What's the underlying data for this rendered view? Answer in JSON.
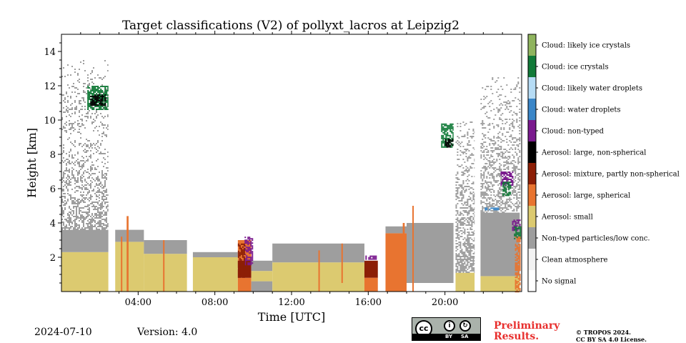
{
  "chart_data": {
    "type": "heatmap",
    "title": "Target classifications (V2) of pollyxt_lacros at Leipzig2",
    "xlabel": "Time [UTC]",
    "ylabel": "Height [km]",
    "xlim_hours": [
      0,
      24
    ],
    "ylim_km": [
      0,
      15
    ],
    "x_ticks": [
      {
        "value": 4,
        "label": "04:00"
      },
      {
        "value": 8,
        "label": "08:00"
      },
      {
        "value": 12,
        "label": "12:00"
      },
      {
        "value": 16,
        "label": "16:00"
      },
      {
        "value": 20,
        "label": "20:00"
      }
    ],
    "y_ticks": [
      {
        "value": 2,
        "label": "2"
      },
      {
        "value": 4,
        "label": "4"
      },
      {
        "value": 6,
        "label": "6"
      },
      {
        "value": 8,
        "label": "8"
      },
      {
        "value": 10,
        "label": "10"
      },
      {
        "value": 12,
        "label": "12"
      },
      {
        "value": 14,
        "label": "14"
      }
    ],
    "classes": [
      {
        "label": "No signal",
        "color": "#ffffff"
      },
      {
        "label": "Clean atmosphere",
        "color": "#f2f2f2"
      },
      {
        "label": "Non-typed particles/low conc.",
        "color": "#9e9e9e"
      },
      {
        "label": "Aerosol: small",
        "color": "#dcca70"
      },
      {
        "label": "Aerosol: large, spherical",
        "color": "#e87430"
      },
      {
        "label": "Aerosol: mixture, partly non-spherical",
        "color": "#8c1e06"
      },
      {
        "label": "Aerosol: large, non-spherical",
        "color": "#000000"
      },
      {
        "label": "Cloud: non-typed",
        "color": "#7a1a8e"
      },
      {
        "label": "Cloud: water droplets",
        "color": "#3a86c8"
      },
      {
        "label": "Cloud: likely water droplets",
        "color": "#b6dcf5"
      },
      {
        "label": "Cloud: ice crystals",
        "color": "#117a38"
      },
      {
        "label": "Cloud: likely ice crystals",
        "color": "#8fb45e"
      }
    ],
    "no_data_gaps_hours": [
      [
        2.45,
        2.8
      ],
      [
        6.55,
        6.85
      ],
      [
        20.45,
        20.55
      ],
      [
        21.55,
        21.85
      ]
    ],
    "profiles": [
      {
        "t": [
          0.0,
          2.45
        ],
        "layers": [
          {
            "class": 3,
            "bottom": 0.0,
            "top": 2.3
          },
          {
            "class": 2,
            "bottom": 2.3,
            "top": 3.6
          },
          {
            "class": 2,
            "bottom": 3.6,
            "top": 9.5,
            "sparse": 0.6
          },
          {
            "class": 2,
            "bottom": 9.5,
            "top": 13.5,
            "sparse": 0.25
          }
        ]
      },
      {
        "t": [
          2.8,
          4.3
        ],
        "layers": [
          {
            "class": 3,
            "bottom": 0.0,
            "top": 2.9
          },
          {
            "class": 2,
            "bottom": 2.9,
            "top": 3.6
          }
        ]
      },
      {
        "t": [
          4.3,
          6.55
        ],
        "layers": [
          {
            "class": 3,
            "bottom": 0.0,
            "top": 2.2
          },
          {
            "class": 2,
            "bottom": 2.2,
            "top": 3.0
          }
        ]
      },
      {
        "t": [
          6.85,
          9.2
        ],
        "layers": [
          {
            "class": 3,
            "bottom": 0.0,
            "top": 2.0
          },
          {
            "class": 2,
            "bottom": 2.0,
            "top": 2.3
          }
        ]
      },
      {
        "t": [
          9.2,
          9.9
        ],
        "layers": [
          {
            "class": 4,
            "bottom": 0.0,
            "top": 0.8
          },
          {
            "class": 5,
            "bottom": 0.8,
            "top": 1.8
          },
          {
            "class": 4,
            "bottom": 1.8,
            "top": 3.0
          }
        ]
      },
      {
        "t": [
          9.9,
          11.0
        ],
        "layers": [
          {
            "class": 2,
            "bottom": 0.0,
            "top": 0.6
          },
          {
            "class": 3,
            "bottom": 0.6,
            "top": 1.2
          },
          {
            "class": 2,
            "bottom": 1.2,
            "top": 1.8
          }
        ]
      },
      {
        "t": [
          11.0,
          15.8
        ],
        "layers": [
          {
            "class": 3,
            "bottom": 0.0,
            "top": 1.7
          },
          {
            "class": 2,
            "bottom": 1.7,
            "top": 2.8
          }
        ]
      },
      {
        "t": [
          15.8,
          16.5
        ],
        "layers": [
          {
            "class": 5,
            "bottom": 0.8,
            "top": 1.8
          },
          {
            "class": 4,
            "bottom": 0.0,
            "top": 0.8
          }
        ]
      },
      {
        "t": [
          16.9,
          18.0
        ],
        "layers": [
          {
            "class": 4,
            "bottom": 0.0,
            "top": 3.4
          },
          {
            "class": 2,
            "bottom": 3.4,
            "top": 3.8
          }
        ]
      },
      {
        "t": [
          18.0,
          20.45
        ],
        "layers": [
          {
            "class": 2,
            "bottom": 0.5,
            "top": 1.5
          },
          {
            "class": 2,
            "bottom": 1.5,
            "top": 4.0
          }
        ]
      },
      {
        "t": [
          20.55,
          21.55
        ],
        "layers": [
          {
            "class": 3,
            "bottom": 0.0,
            "top": 1.1
          },
          {
            "class": 2,
            "bottom": 1.1,
            "top": 10.0,
            "sparse": 0.7
          }
        ]
      },
      {
        "t": [
          21.85,
          23.9
        ],
        "layers": [
          {
            "class": 3,
            "bottom": 0.0,
            "top": 0.9
          },
          {
            "class": 2,
            "bottom": 0.9,
            "top": 4.6
          },
          {
            "class": 2,
            "bottom": 4.6,
            "top": 12.5,
            "sparse": 0.5
          }
        ]
      }
    ],
    "features": [
      {
        "class": 10,
        "t": [
          1.35,
          2.45
        ],
        "bottom": 10.6,
        "top": 12.0
      },
      {
        "class": 6,
        "t": [
          1.5,
          2.3
        ],
        "bottom": 10.9,
        "top": 11.5
      },
      {
        "class": 10,
        "t": [
          19.8,
          20.45
        ],
        "bottom": 8.4,
        "top": 9.8
      },
      {
        "class": 6,
        "t": [
          20.0,
          20.4
        ],
        "bottom": 8.4,
        "top": 8.9
      },
      {
        "class": 7,
        "t": [
          22.9,
          23.5
        ],
        "bottom": 6.2,
        "top": 7.0
      },
      {
        "class": 10,
        "t": [
          23.0,
          23.4
        ],
        "bottom": 5.6,
        "top": 6.4
      },
      {
        "class": 7,
        "t": [
          23.5,
          23.9
        ],
        "bottom": 3.6,
        "top": 4.2
      },
      {
        "class": 10,
        "t": [
          23.6,
          23.9
        ],
        "bottom": 3.1,
        "top": 3.8
      },
      {
        "class": 4,
        "t": [
          23.65,
          23.9
        ],
        "bottom": 0.0,
        "top": 3.2
      },
      {
        "class": 7,
        "t": [
          9.55,
          9.95
        ],
        "bottom": 1.6,
        "top": 3.2
      },
      {
        "class": 5,
        "t": [
          9.2,
          9.5
        ],
        "bottom": 0.8,
        "top": 2.8
      },
      {
        "class": 7,
        "t": [
          15.85,
          16.4
        ],
        "bottom": 1.9,
        "top": 2.1
      },
      {
        "class": 8,
        "t": [
          22.0,
          22.8
        ],
        "bottom": 4.8,
        "top": 4.9
      },
      {
        "class": 4,
        "t": [
          3.4,
          3.5
        ],
        "bottom": 0.0,
        "top": 4.4
      },
      {
        "class": 4,
        "t": [
          3.1,
          3.15
        ],
        "bottom": 0.0,
        "top": 3.2
      },
      {
        "class": 4,
        "t": [
          5.3,
          5.35
        ],
        "bottom": 0.0,
        "top": 3.0
      },
      {
        "class": 4,
        "t": [
          17.8,
          17.9
        ],
        "bottom": 0.0,
        "top": 4.0
      },
      {
        "class": 4,
        "t": [
          18.3,
          18.35
        ],
        "bottom": 0.0,
        "top": 5.0
      },
      {
        "class": 4,
        "t": [
          14.6,
          14.65
        ],
        "bottom": 0.5,
        "top": 2.8
      },
      {
        "class": 4,
        "t": [
          13.4,
          13.45
        ],
        "bottom": 0.0,
        "top": 2.4
      }
    ]
  },
  "footer": {
    "date": "2024-07-10",
    "version": "Version: 4.0",
    "preliminary": [
      "Preliminary",
      "Results."
    ],
    "copyright": [
      "© TROPOS 2024.",
      "CC BY SA 4.0 License."
    ],
    "license_badge": {
      "logo": "cc",
      "by": "BY",
      "sa": "SA"
    }
  }
}
